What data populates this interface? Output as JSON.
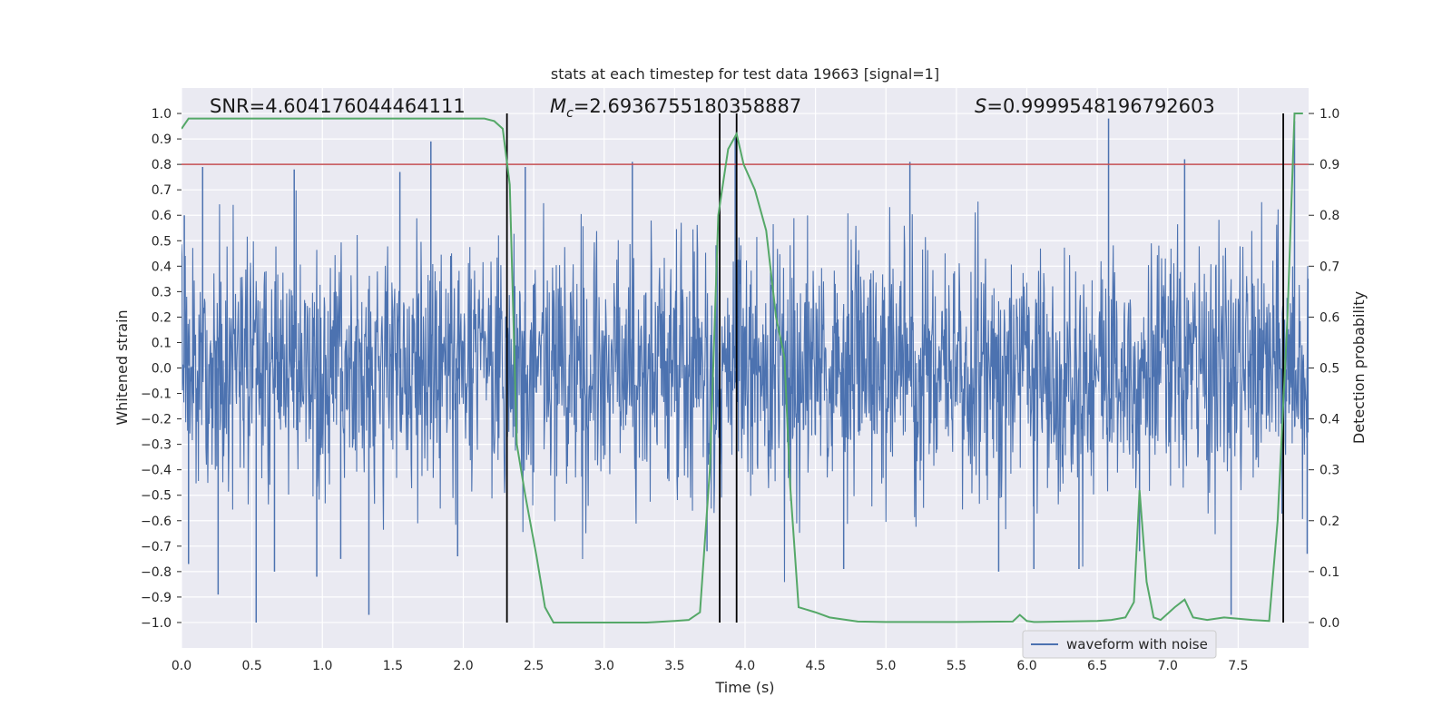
{
  "chart_data": {
    "type": "line",
    "title": "stats at each timestep for test data 19663 [signal=1]",
    "xlabel": "Time (s)",
    "ylabel_left": "Whitened strain",
    "ylabel_right": "Detection probability",
    "xlim": [
      0.0,
      8.0
    ],
    "ylim_left": [
      -1.1,
      1.1
    ],
    "ylim_right": [
      -0.05,
      1.05
    ],
    "x_ticks": [
      "0.0",
      "0.5",
      "1.0",
      "1.5",
      "2.0",
      "2.5",
      "3.0",
      "3.5",
      "4.0",
      "4.5",
      "5.0",
      "5.5",
      "6.0",
      "6.5",
      "7.0",
      "7.5"
    ],
    "y_ticks_left": [
      "1.0",
      "0.9",
      "0.8",
      "0.7",
      "0.6",
      "0.5",
      "0.4",
      "0.3",
      "0.2",
      "0.1",
      "0.0",
      "−0.1",
      "−0.2",
      "−0.3",
      "−0.4",
      "−0.5",
      "−0.6",
      "−0.7",
      "−0.8",
      "−0.9",
      "−1.0"
    ],
    "y_ticks_right": [
      "1.0",
      "0.9",
      "0.8",
      "0.7",
      "0.6",
      "0.5",
      "0.4",
      "0.3",
      "0.2",
      "0.1",
      "0.0"
    ],
    "grid": true,
    "annotations": {
      "snr": "SNR=4.604176044464111",
      "mc_symbol": "M",
      "mc_sub": "c",
      "mc_value": "=2.6936755180358887",
      "s_symbol": "S",
      "s_value": "=0.9999548196792603"
    },
    "threshold_right": 0.9,
    "vertical_lines_x": [
      2.31,
      3.82,
      3.94,
      7.82
    ],
    "series": [
      {
        "name": "waveform with noise",
        "color": "#4c72b0",
        "note": "dense noisy whitened strain; envelope approx ±0.5, spikes to ±1.0",
        "spikes": [
          {
            "t": 0.02,
            "v": 0.6
          },
          {
            "t": 0.05,
            "v": -0.77
          },
          {
            "t": 0.15,
            "v": 0.79
          },
          {
            "t": 0.26,
            "v": -0.89
          },
          {
            "t": 0.53,
            "v": -1.0
          },
          {
            "t": 0.66,
            "v": -0.8
          },
          {
            "t": 0.8,
            "v": 0.78
          },
          {
            "t": 0.96,
            "v": -0.82
          },
          {
            "t": 1.13,
            "v": -0.75
          },
          {
            "t": 1.33,
            "v": -0.97
          },
          {
            "t": 1.55,
            "v": 0.77
          },
          {
            "t": 1.77,
            "v": 0.89
          },
          {
            "t": 1.96,
            "v": -0.74
          },
          {
            "t": 2.44,
            "v": 0.79
          },
          {
            "t": 3.2,
            "v": 0.81
          },
          {
            "t": 3.73,
            "v": -0.72
          },
          {
            "t": 3.93,
            "v": 0.91
          },
          {
            "t": 4.7,
            "v": -0.79
          },
          {
            "t": 5.17,
            "v": 0.81
          },
          {
            "t": 5.8,
            "v": -0.8
          },
          {
            "t": 6.05,
            "v": -0.79
          },
          {
            "t": 6.37,
            "v": -0.79
          },
          {
            "t": 6.58,
            "v": 0.98
          },
          {
            "t": 6.8,
            "v": -0.72
          },
          {
            "t": 7.12,
            "v": 0.82
          },
          {
            "t": 7.45,
            "v": -0.97
          },
          {
            "t": 7.9,
            "v": 0.97
          },
          {
            "t": 7.99,
            "v": -0.73
          }
        ]
      },
      {
        "name": "detection probability",
        "color": "#55a868",
        "axis": "right",
        "x": [
          0.0,
          0.05,
          0.2,
          2.0,
          2.15,
          2.22,
          2.28,
          2.33,
          2.38,
          2.44,
          2.52,
          2.58,
          2.64,
          2.75,
          3.0,
          3.3,
          3.5,
          3.6,
          3.68,
          3.75,
          3.81,
          3.88,
          3.94,
          3.99,
          4.07,
          4.15,
          4.22,
          4.28,
          4.32,
          4.38,
          4.5,
          4.6,
          4.8,
          5.0,
          5.5,
          5.9,
          5.95,
          6.0,
          6.05,
          6.5,
          6.6,
          6.7,
          6.76,
          6.8,
          6.85,
          6.9,
          6.95,
          7.05,
          7.12,
          7.18,
          7.28,
          7.4,
          7.6,
          7.72,
          7.78,
          7.85,
          7.9,
          7.96
        ],
        "values": [
          0.97,
          0.99,
          0.99,
          0.99,
          0.99,
          0.985,
          0.97,
          0.86,
          0.35,
          0.25,
          0.13,
          0.03,
          0.0,
          0.0,
          0.0,
          0.0,
          0.003,
          0.005,
          0.02,
          0.3,
          0.8,
          0.93,
          0.96,
          0.9,
          0.85,
          0.77,
          0.6,
          0.52,
          0.27,
          0.03,
          0.02,
          0.01,
          0.002,
          0.001,
          0.001,
          0.002,
          0.015,
          0.003,
          0.001,
          0.003,
          0.005,
          0.01,
          0.04,
          0.26,
          0.08,
          0.01,
          0.005,
          0.03,
          0.045,
          0.01,
          0.005,
          0.01,
          0.005,
          0.003,
          0.2,
          0.6,
          1.0,
          1.0
        ]
      }
    ],
    "threshold_color": "#c44e52",
    "noise_seed": 19663,
    "legend_position": "lower-right",
    "legend_entries": [
      "waveform with noise"
    ]
  }
}
